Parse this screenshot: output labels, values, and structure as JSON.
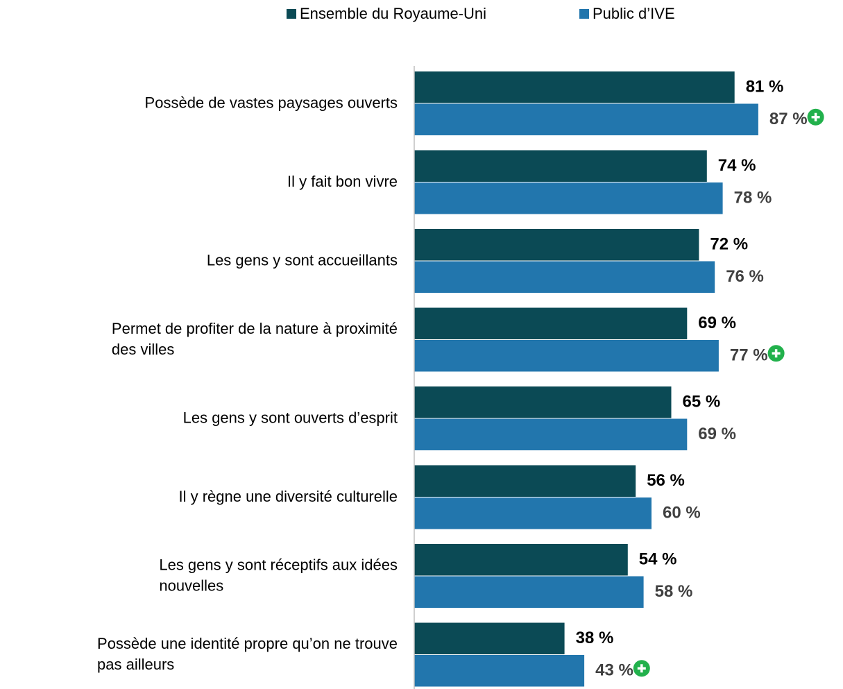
{
  "chart_data": {
    "type": "bar",
    "orientation": "horizontal",
    "categories": [
      [
        "Possède de vastes paysages ouverts"
      ],
      [
        "Il y fait bon vivre"
      ],
      [
        "Les gens y sont accueillants"
      ],
      [
        "Permet de profiter de la nature à proximité",
        "des villes"
      ],
      [
        "Les gens y sont ouverts d’esprit"
      ],
      [
        "Il y règne une diversité culturelle"
      ],
      [
        "Les gens y sont réceptifs aux idées",
        "nouvelles"
      ],
      [
        "Possède une identité propre qu’on ne trouve",
        "pas ailleurs"
      ]
    ],
    "series": [
      {
        "name": "Ensemble du Royaume-Uni",
        "color": "#0b4a55",
        "label_color": "#000000",
        "values": [
          81,
          74,
          72,
          69,
          65,
          56,
          54,
          38
        ],
        "value_labels": [
          "81 %",
          "74 %",
          "72 %",
          "69 %",
          "65 %",
          "56 %",
          "54 %",
          "38 %"
        ]
      },
      {
        "name": "Public d’IVE",
        "color": "#2276ad",
        "label_color": "#404040",
        "values": [
          87,
          78,
          76,
          77,
          69,
          60,
          58,
          43
        ],
        "value_labels": [
          "87 %",
          "78 %",
          "76 %",
          "77 %",
          "69 %",
          "60 %",
          "58 %",
          "43 %"
        ],
        "significant": [
          true,
          false,
          false,
          true,
          false,
          false,
          false,
          true
        ]
      }
    ],
    "xlim": [
      0,
      100
    ],
    "legend": "top"
  }
}
